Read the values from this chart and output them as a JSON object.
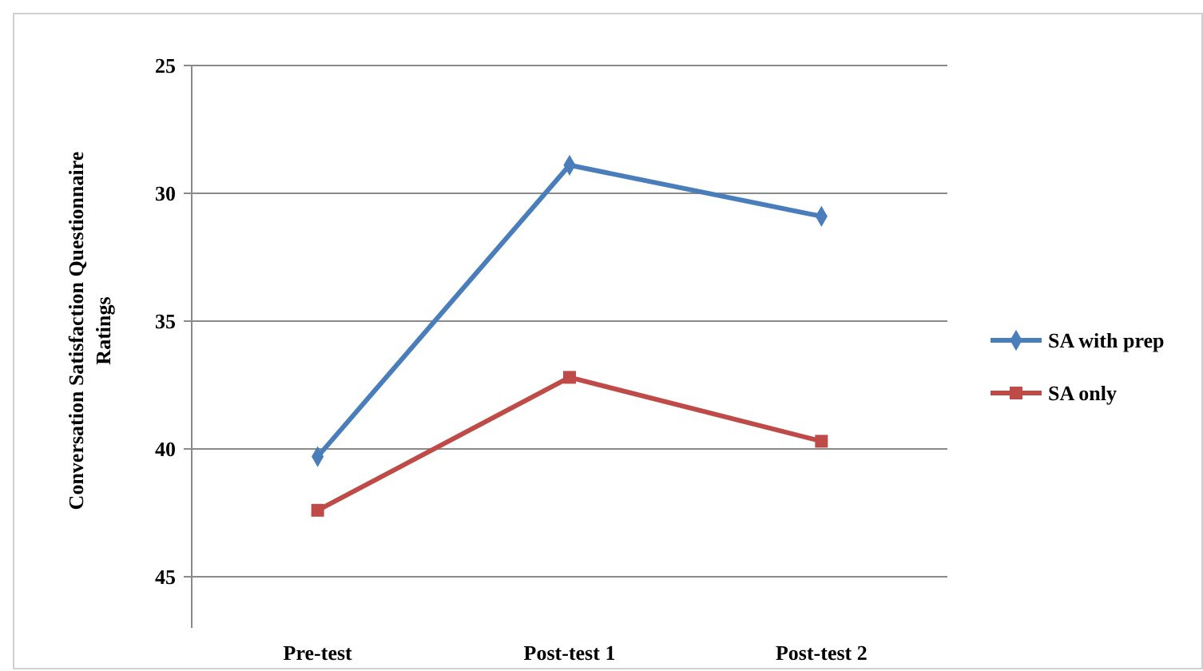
{
  "chart_data": {
    "type": "line",
    "ylabel": "Conversation Satisfaction Questionnaire Ratings",
    "categories": [
      "Pre-test",
      "Post-test 1",
      "Post-test 2"
    ],
    "series": [
      {
        "name": "SA with prep",
        "color": "#4a7ebb",
        "values": [
          40.3,
          28.9,
          30.9
        ],
        "marker": "diamond"
      },
      {
        "name": "SA only",
        "color": "#be4b48",
        "values": [
          42.4,
          37.2,
          39.7
        ],
        "marker": "square"
      }
    ],
    "ylim": [
      47,
      25
    ],
    "yticks": [
      25,
      30,
      35,
      40,
      45
    ],
    "grid": "y",
    "legend": "right"
  }
}
